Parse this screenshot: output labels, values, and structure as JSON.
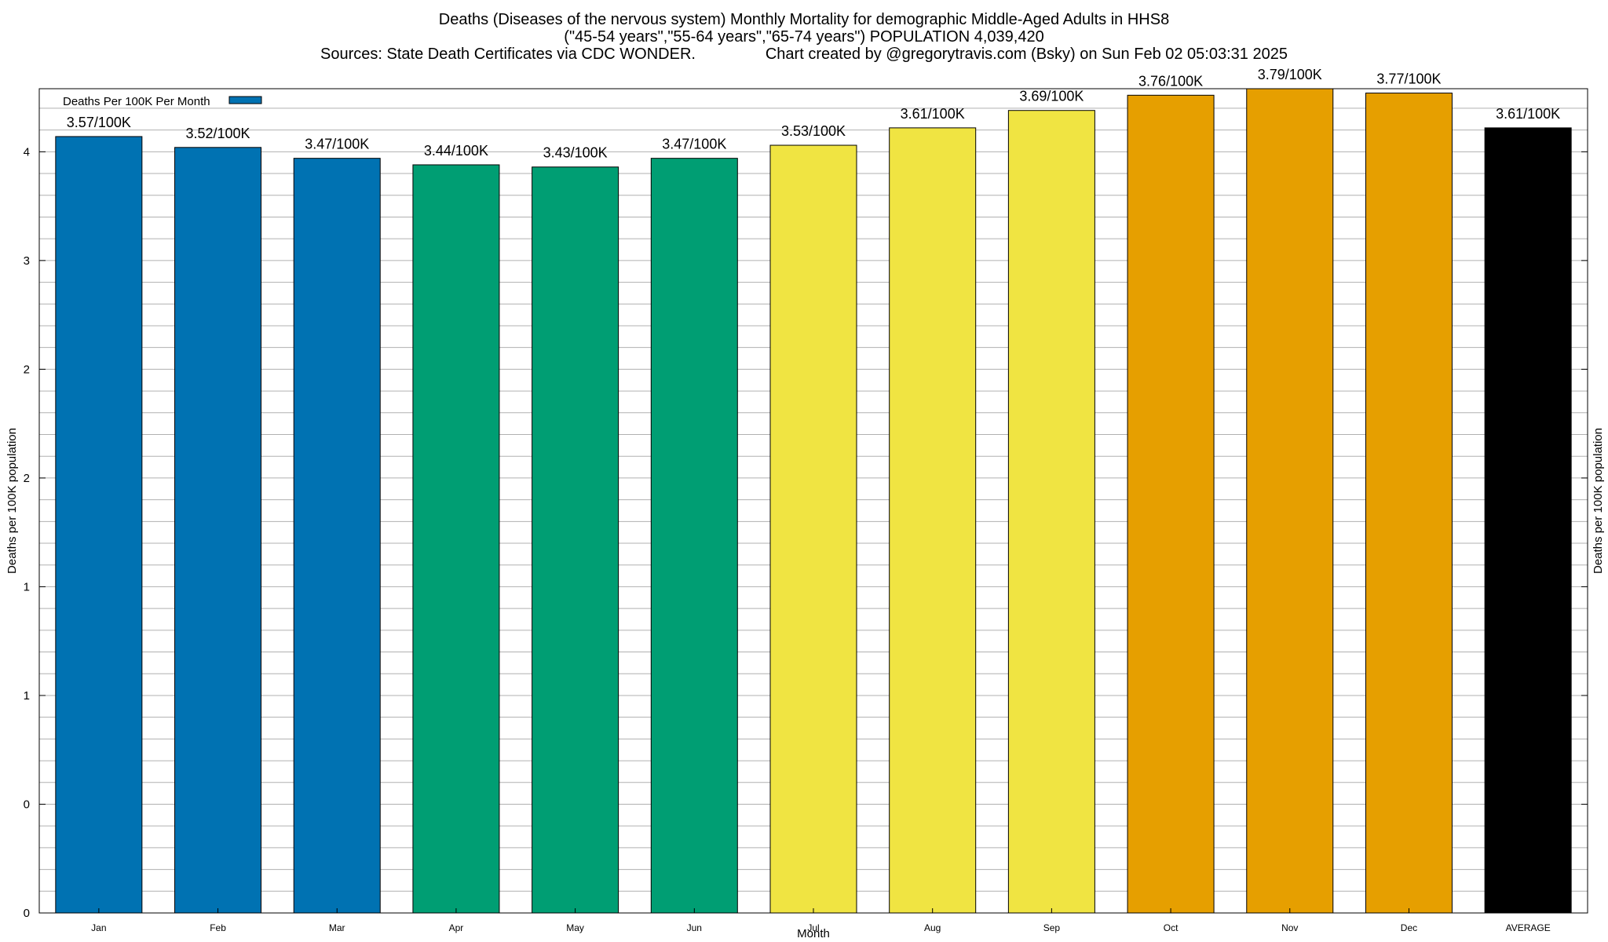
{
  "title_lines": [
    "Deaths (Diseases of the nervous system) Monthly Mortality for demographic Middle-Aged Adults in HHS8",
    "(\"45-54 years\",\"55-64 years\",\"65-74 years\") POPULATION 4,039,420",
    "Sources: State Death Certificates via CDC WONDER.                Chart created by @gregorytravis.com (Bsky) on Sun Feb 02 05:03:31 2025"
  ],
  "chart_data": {
    "type": "bar",
    "title": "Deaths (Diseases of the nervous system) Monthly Mortality for demographic Middle-Aged Adults in HHS8",
    "xlabel": "Month",
    "ylabel": "Deaths per 100K population",
    "y2label": "Deaths per 100K population",
    "categories": [
      "Jan",
      "Feb",
      "Mar",
      "Apr",
      "May",
      "Jun",
      "Jul",
      "Aug",
      "Sep",
      "Oct",
      "Nov",
      "Dec",
      "AVERAGE"
    ],
    "values": [
      3.57,
      3.52,
      3.47,
      3.44,
      3.43,
      3.47,
      3.53,
      3.61,
      3.69,
      3.76,
      3.79,
      3.77,
      3.61
    ],
    "data_labels": [
      "3.57/100K",
      "3.52/100K",
      "3.47/100K",
      "3.44/100K",
      "3.43/100K",
      "3.47/100K",
      "3.53/100K",
      "3.61/100K",
      "3.69/100K",
      "3.76/100K",
      "3.79/100K",
      "3.77/100K",
      "3.61/100K"
    ],
    "bar_colors": [
      "#0072b2",
      "#0072b2",
      "#0072b2",
      "#009e73",
      "#009e73",
      "#009e73",
      "#f0e442",
      "#f0e442",
      "#f0e442",
      "#e69f00",
      "#e69f00",
      "#e69f00",
      "#000000"
    ],
    "ylim": [
      0,
      3.79
    ],
    "y_tick_values": [
      0,
      0.5,
      1,
      1.5,
      2,
      2.5,
      3,
      3.5
    ],
    "y_tick_labels": [
      "0",
      "0",
      "1",
      "1",
      "2",
      "2",
      "3",
      "4"
    ],
    "grid": true,
    "legend": {
      "position": "top-left",
      "entries": [
        {
          "name": "Deaths Per 100K Per Month",
          "color": "#0072b2"
        }
      ]
    }
  }
}
